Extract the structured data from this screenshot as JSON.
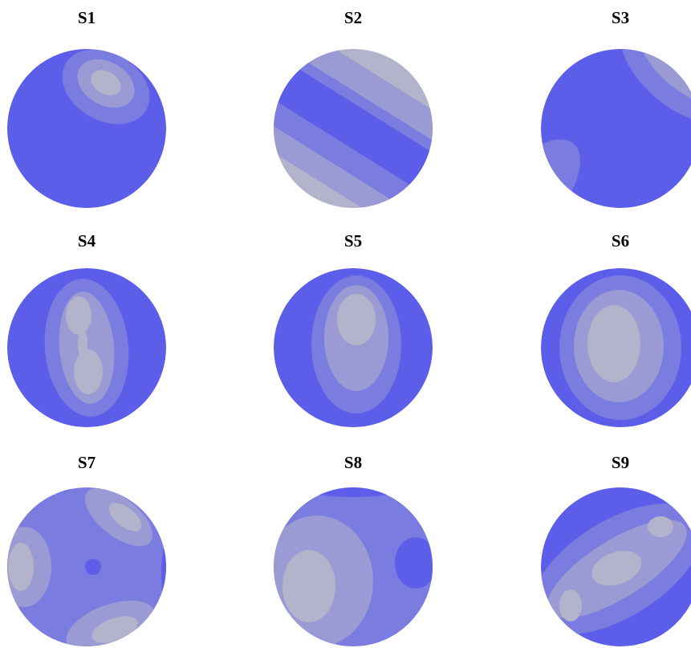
{
  "panels": [
    {
      "title": "S1"
    },
    {
      "title": "S2"
    },
    {
      "title": "S3"
    },
    {
      "title": "S4"
    },
    {
      "title": "S5"
    },
    {
      "title": "S6"
    },
    {
      "title": "S7"
    },
    {
      "title": "S8"
    },
    {
      "title": "S9"
    }
  ]
}
